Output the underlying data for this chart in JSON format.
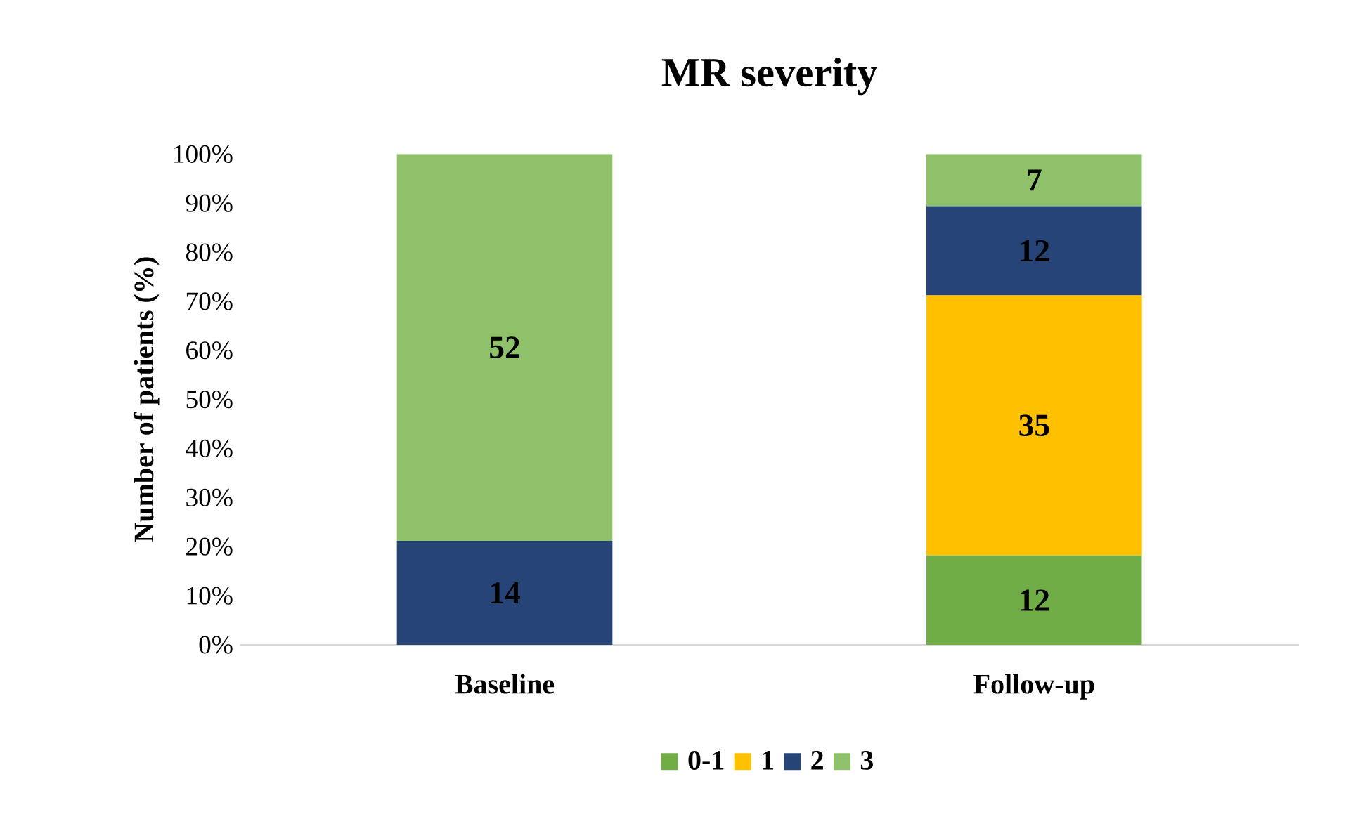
{
  "chart_data": {
    "type": "bar",
    "stacked": true,
    "title": "MR severity",
    "ylabel": "Number of patients (%)",
    "categories": [
      "Baseline",
      "Follow-up"
    ],
    "series": [
      {
        "name": "0-1",
        "color": "#70ad47",
        "values": [
          0,
          18.2
        ]
      },
      {
        "name": "1",
        "color": "#ffc000",
        "values": [
          0,
          53.0
        ]
      },
      {
        "name": "2",
        "color": "#264478",
        "values": [
          21.2,
          18.2
        ]
      },
      {
        "name": "3",
        "color": "#8fc16a",
        "values": [
          78.8,
          10.6
        ]
      }
    ],
    "annotations": [
      "14",
      "52",
      "12",
      "35",
      "12",
      "7"
    ],
    "ylim": [
      0,
      100
    ],
    "yticks": [
      {
        "value": 0,
        "label": "0%"
      },
      {
        "value": 10,
        "label": "10%"
      },
      {
        "value": 20,
        "label": "20%"
      },
      {
        "value": 30,
        "label": "30%"
      },
      {
        "value": 40,
        "label": "40%"
      },
      {
        "value": 50,
        "label": "50%"
      },
      {
        "value": 60,
        "label": "60%"
      },
      {
        "value": 70,
        "label": "70%"
      },
      {
        "value": 80,
        "label": "80%"
      },
      {
        "value": 90,
        "label": "90%"
      },
      {
        "value": 100,
        "label": "100%"
      }
    ],
    "grid": false,
    "legend": "bottom"
  }
}
